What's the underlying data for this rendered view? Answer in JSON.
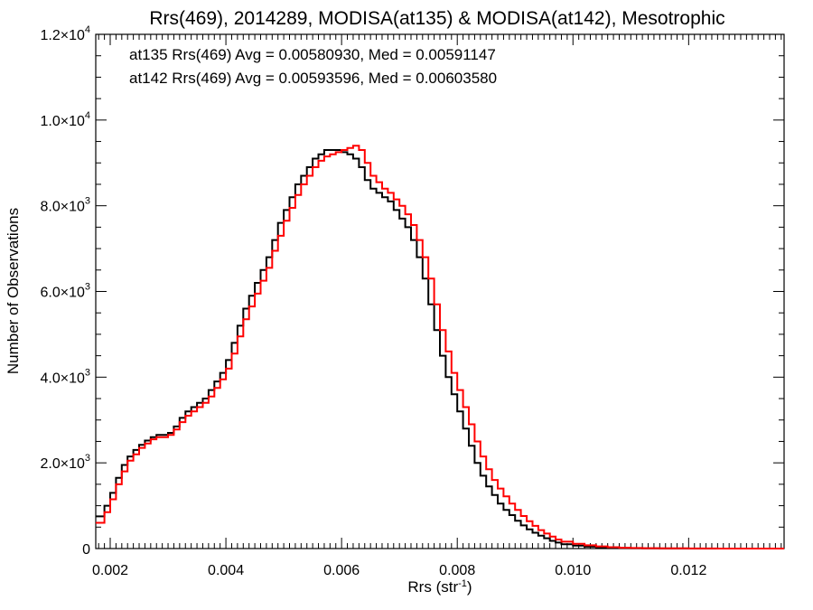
{
  "chart_data": {
    "type": "line",
    "title": "Rrs(469), 2014289, MODISA(at135) & MODISA(at142), Mesotrophic",
    "xlabel": "Rrs (str",
    "xlabel_sup": "-1",
    "xlabel_close": ")",
    "ylabel": "Number of Observations",
    "xlim": [
      0.00175,
      0.01365
    ],
    "ylim": [
      0,
      12000
    ],
    "x_ticks": [
      {
        "value": 0.002,
        "label": "0.002"
      },
      {
        "value": 0.004,
        "label": "0.004"
      },
      {
        "value": 0.006,
        "label": "0.006"
      },
      {
        "value": 0.008,
        "label": "0.008"
      },
      {
        "value": 0.01,
        "label": "0.010"
      },
      {
        "value": 0.012,
        "label": "0.012"
      }
    ],
    "y_ticks": [
      {
        "value": 0,
        "mant": "0",
        "exp": ""
      },
      {
        "value": 2000,
        "mant": "2.0×10",
        "exp": "3"
      },
      {
        "value": 4000,
        "mant": "4.0×10",
        "exp": "3"
      },
      {
        "value": 6000,
        "mant": "6.0×10",
        "exp": "3"
      },
      {
        "value": 8000,
        "mant": "8.0×10",
        "exp": "3"
      },
      {
        "value": 10000,
        "mant": "1.0×10",
        "exp": "4"
      },
      {
        "value": 12000,
        "mant": "1.2×10",
        "exp": "4"
      }
    ],
    "annotations": [
      {
        "text": "at135 Rrs(469) Avg = 0.00580930, Med = 0.00591147",
        "color": "#000000"
      },
      {
        "text": "at142 Rrs(469) Avg = 0.00593596, Med = 0.00603580",
        "color": "#ff0000"
      }
    ],
    "series": [
      {
        "color": "#000000",
        "x": [
          0.00175,
          0.0019,
          0.002,
          0.0021,
          0.0022,
          0.0023,
          0.0024,
          0.0025,
          0.0026,
          0.0027,
          0.0028,
          0.0029,
          0.003,
          0.0031,
          0.0032,
          0.0033,
          0.0034,
          0.0035,
          0.0036,
          0.0037,
          0.0038,
          0.0039,
          0.004,
          0.0041,
          0.0042,
          0.0043,
          0.0044,
          0.0045,
          0.0046,
          0.0047,
          0.0048,
          0.0049,
          0.005,
          0.0051,
          0.0052,
          0.0053,
          0.0054,
          0.0055,
          0.0056,
          0.0057,
          0.0058,
          0.0059,
          0.006,
          0.0061,
          0.0062,
          0.0063,
          0.0064,
          0.0065,
          0.0066,
          0.0067,
          0.0068,
          0.0069,
          0.007,
          0.0071,
          0.0072,
          0.0073,
          0.0074,
          0.0075,
          0.0076,
          0.0077,
          0.0078,
          0.0079,
          0.008,
          0.0081,
          0.0082,
          0.0083,
          0.0084,
          0.0085,
          0.0086,
          0.0087,
          0.0088,
          0.0089,
          0.009,
          0.0091,
          0.0092,
          0.0093,
          0.0094,
          0.0095,
          0.0096,
          0.0097,
          0.0098,
          0.01,
          0.0102,
          0.0104,
          0.0106,
          0.0108,
          0.011,
          0.0112,
          0.0115,
          0.012,
          0.0125,
          0.013,
          0.01365
        ],
        "values": [
          750,
          1000,
          1300,
          1650,
          1950,
          2150,
          2300,
          2420,
          2520,
          2600,
          2650,
          2650,
          2700,
          2850,
          3050,
          3200,
          3300,
          3400,
          3500,
          3700,
          3900,
          4100,
          4400,
          4800,
          5200,
          5600,
          5900,
          6200,
          6500,
          6800,
          7200,
          7600,
          7900,
          8200,
          8500,
          8700,
          8900,
          9100,
          9200,
          9300,
          9300,
          9300,
          9250,
          9200,
          9100,
          8900,
          8600,
          8400,
          8300,
          8200,
          8100,
          7900,
          7700,
          7500,
          7200,
          6800,
          6300,
          5700,
          5100,
          4500,
          4000,
          3600,
          3200,
          2800,
          2400,
          2000,
          1700,
          1450,
          1250,
          1050,
          900,
          780,
          650,
          540,
          450,
          370,
          300,
          240,
          180,
          140,
          100,
          70,
          45,
          30,
          20,
          12,
          8,
          5,
          3,
          1,
          0,
          0,
          0
        ]
      },
      {
        "color": "#ff0000",
        "x": [
          0.00175,
          0.0019,
          0.002,
          0.0021,
          0.0022,
          0.0023,
          0.0024,
          0.0025,
          0.0026,
          0.0027,
          0.0028,
          0.0029,
          0.003,
          0.0031,
          0.0032,
          0.0033,
          0.0034,
          0.0035,
          0.0036,
          0.0037,
          0.0038,
          0.0039,
          0.004,
          0.0041,
          0.0042,
          0.0043,
          0.0044,
          0.0045,
          0.0046,
          0.0047,
          0.0048,
          0.0049,
          0.005,
          0.0051,
          0.0052,
          0.0053,
          0.0054,
          0.0055,
          0.0056,
          0.0057,
          0.0058,
          0.0059,
          0.006,
          0.0061,
          0.0062,
          0.0063,
          0.0064,
          0.0065,
          0.0066,
          0.0067,
          0.0068,
          0.0069,
          0.007,
          0.0071,
          0.0072,
          0.0073,
          0.0074,
          0.0075,
          0.0076,
          0.0077,
          0.0078,
          0.0079,
          0.008,
          0.0081,
          0.0082,
          0.0083,
          0.0084,
          0.0085,
          0.0086,
          0.0087,
          0.0088,
          0.0089,
          0.009,
          0.0091,
          0.0092,
          0.0093,
          0.0094,
          0.0095,
          0.0096,
          0.0097,
          0.0098,
          0.01,
          0.0102,
          0.0104,
          0.0106,
          0.0108,
          0.011,
          0.0112,
          0.0115,
          0.012,
          0.0125,
          0.013,
          0.01365
        ],
        "values": [
          600,
          850,
          1150,
          1500,
          1800,
          2050,
          2200,
          2350,
          2450,
          2550,
          2600,
          2600,
          2650,
          2780,
          2950,
          3100,
          3200,
          3300,
          3400,
          3550,
          3750,
          3950,
          4200,
          4550,
          4950,
          5350,
          5650,
          5950,
          6250,
          6550,
          6950,
          7300,
          7650,
          7950,
          8250,
          8500,
          8700,
          8900,
          9050,
          9150,
          9200,
          9250,
          9300,
          9350,
          9400,
          9300,
          9000,
          8700,
          8550,
          8400,
          8300,
          8150,
          8000,
          7800,
          7550,
          7200,
          6800,
          6300,
          5700,
          5100,
          4600,
          4100,
          3700,
          3300,
          2900,
          2500,
          2150,
          1850,
          1600,
          1400,
          1220,
          1050,
          900,
          760,
          640,
          530,
          430,
          350,
          280,
          210,
          160,
          110,
          75,
          50,
          32,
          20,
          12,
          8,
          5,
          2,
          1,
          0,
          0
        ]
      }
    ]
  }
}
